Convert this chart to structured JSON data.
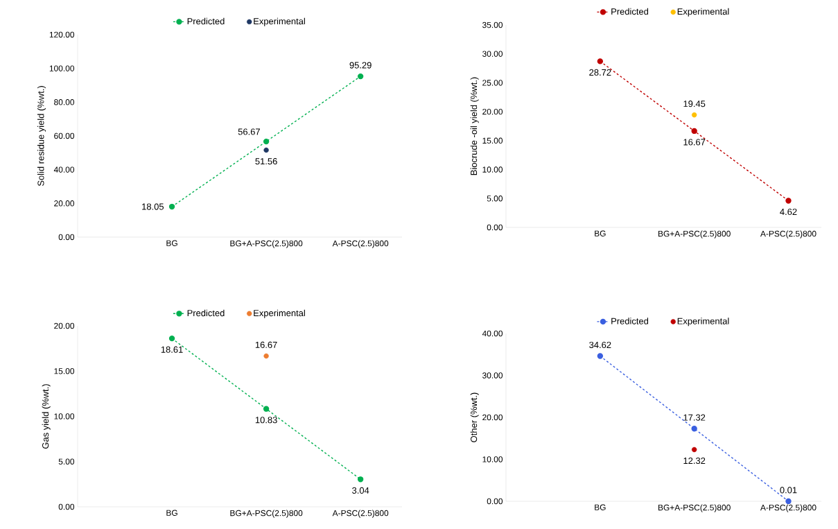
{
  "chart_data": [
    {
      "type": "line",
      "ylabel": "Solid residue yield (%wt.)",
      "categories": [
        "BG",
        "BG+A-PSC(2.5)800",
        "A-PSC(2.5)800"
      ],
      "ylim": [
        0,
        120
      ],
      "yticks": [
        {
          "value": 0,
          "label": "0.00"
        },
        {
          "value": 20,
          "label": "20.00"
        },
        {
          "value": 40,
          "label": "40.00"
        },
        {
          "value": 60,
          "label": "60.00"
        },
        {
          "value": 80,
          "label": "80.00"
        },
        {
          "value": 100,
          "label": "100.00"
        },
        {
          "value": 120,
          "label": "120.00"
        }
      ],
      "marker": "circle",
      "legend": "top",
      "data_labels": true,
      "series": [
        {
          "name": "Predicted",
          "type": "line",
          "line_style": "dashed",
          "color": "#00b050",
          "values": [
            18.05,
            56.67,
            95.29
          ]
        },
        {
          "name": "Experimental",
          "type": "scatter",
          "color": "#1f3864",
          "values": [
            null,
            51.56,
            null
          ]
        }
      ]
    },
    {
      "type": "line",
      "ylabel": "Biocrude -oil yield (%wt.)",
      "categories": [
        "BG",
        "BG+A-PSC(2.5)800",
        "A-PSC(2.5)800"
      ],
      "ylim": [
        0,
        35
      ],
      "yticks": [
        {
          "value": 0,
          "label": "0.00"
        },
        {
          "value": 5,
          "label": "5.00"
        },
        {
          "value": 10,
          "label": "10.00"
        },
        {
          "value": 15,
          "label": "15.00"
        },
        {
          "value": 20,
          "label": "20.00"
        },
        {
          "value": 25,
          "label": "25.00"
        },
        {
          "value": 30,
          "label": "30.00"
        },
        {
          "value": 35,
          "label": "35.00"
        }
      ],
      "marker": "circle",
      "legend": "top",
      "data_labels": true,
      "series": [
        {
          "name": "Predicted",
          "type": "line",
          "line_style": "dashed",
          "color": "#c00000",
          "values": [
            28.72,
            16.67,
            4.62
          ]
        },
        {
          "name": "Experimental",
          "type": "scatter",
          "color": "#ffc000",
          "values": [
            null,
            19.45,
            null
          ]
        }
      ]
    },
    {
      "type": "line",
      "ylabel": "Gas yield (%wt.)",
      "categories": [
        "BG",
        "BG+A-PSC(2.5)800",
        "A-PSC(2.5)800"
      ],
      "ylim": [
        0,
        20
      ],
      "yticks": [
        {
          "value": 0,
          "label": "0.00"
        },
        {
          "value": 5,
          "label": "5.00"
        },
        {
          "value": 10,
          "label": "10.00"
        },
        {
          "value": 15,
          "label": "15.00"
        },
        {
          "value": 20,
          "label": "20.00"
        }
      ],
      "marker": "circle",
      "legend": "top",
      "data_labels": true,
      "series": [
        {
          "name": "Predicted",
          "type": "line",
          "line_style": "dashed",
          "color": "#00b050",
          "values": [
            18.61,
            10.83,
            3.04
          ]
        },
        {
          "name": "Experimental",
          "type": "scatter",
          "color": "#ed7d31",
          "values": [
            null,
            16.67,
            null
          ]
        }
      ]
    },
    {
      "type": "line",
      "ylabel": "Other (%wt.)",
      "categories": [
        "BG",
        "BG+A-PSC(2.5)800",
        "A-PSC(2.5)800"
      ],
      "ylim": [
        0,
        40
      ],
      "yticks": [
        {
          "value": 0,
          "label": "0.00"
        },
        {
          "value": 10,
          "label": "10.00"
        },
        {
          "value": 20,
          "label": "20.00"
        },
        {
          "value": 30,
          "label": "30.00"
        },
        {
          "value": 40,
          "label": "40.00"
        }
      ],
      "marker": "circle",
      "legend": "top",
      "data_labels": true,
      "series": [
        {
          "name": "Predicted",
          "type": "line",
          "line_style": "dashed",
          "color": "#3a5fe0",
          "values": [
            34.62,
            17.32,
            0.01
          ]
        },
        {
          "name": "Experimental",
          "type": "scatter",
          "color": "#c00000",
          "values": [
            null,
            12.32,
            null
          ]
        }
      ]
    }
  ]
}
